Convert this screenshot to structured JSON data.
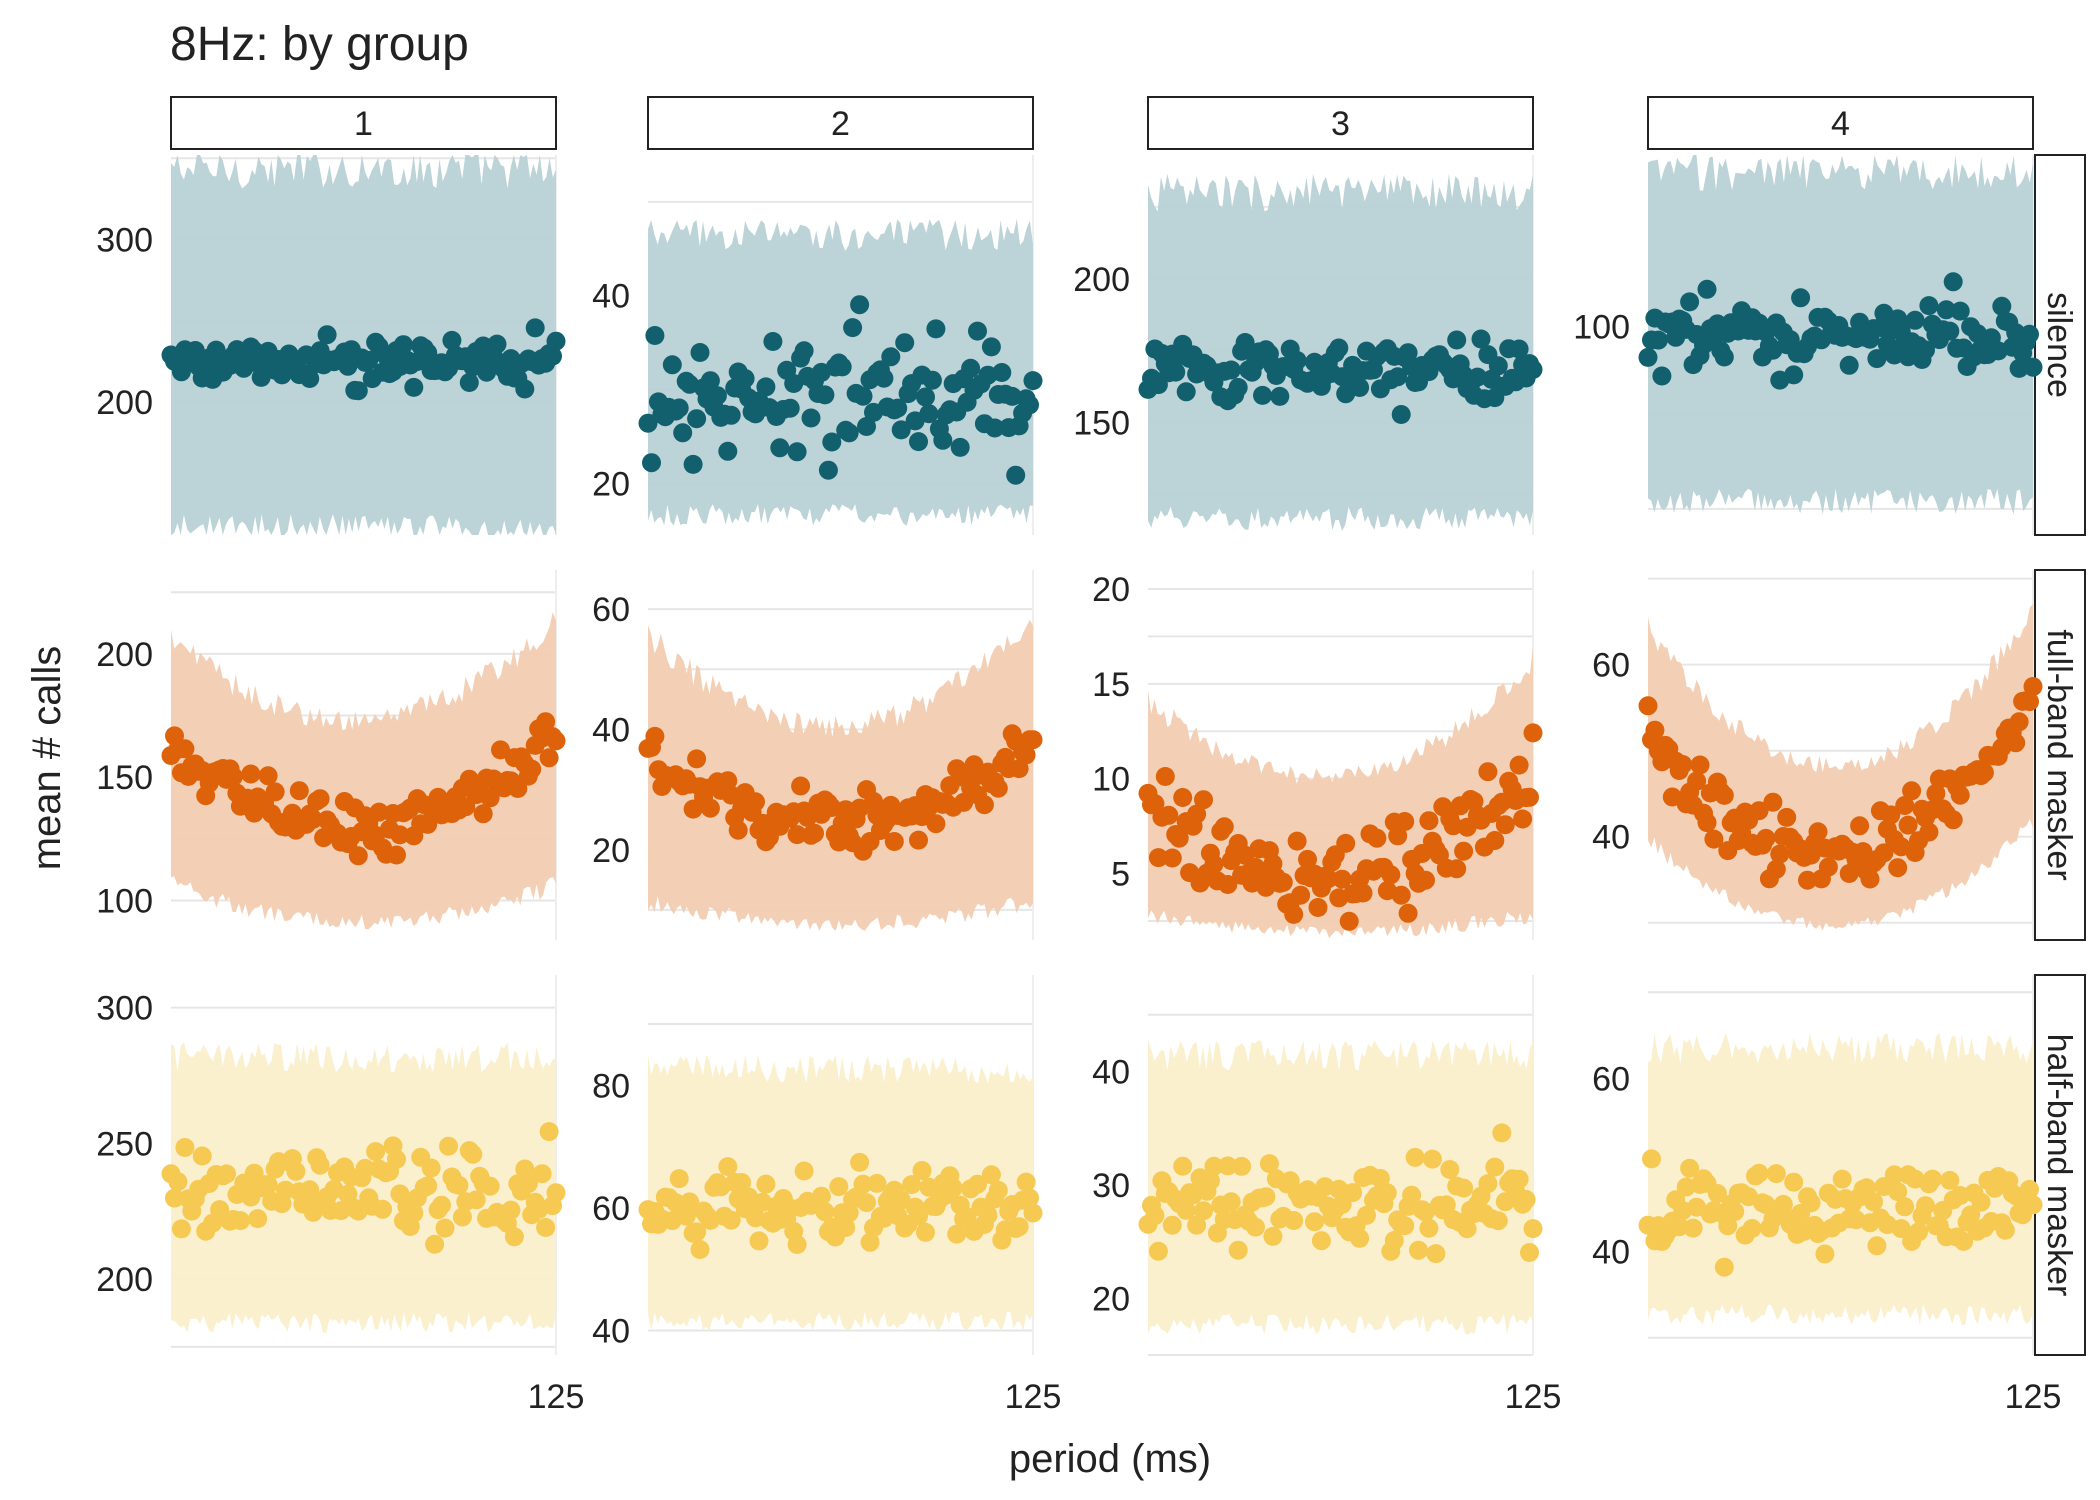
{
  "title": "8Hz: by group",
  "chart_data": {
    "type": "scatter",
    "title": "8Hz: by group",
    "xlabel": "period (ms)",
    "ylabel": "mean # calls",
    "x_tick_labels": [
      "125"
    ],
    "grid": true,
    "legend": "none",
    "columns": [
      "1",
      "2",
      "3",
      "4"
    ],
    "rows": [
      "silence",
      "full-band masker",
      "half-band masker"
    ],
    "colors": {
      "silence": "#12606e",
      "full-band masker": "#dd6209",
      "half-band masker": "#f6c953"
    },
    "ribbon_colors": {
      "silence": "#b8d1d6",
      "full-band masker": "#f2cdb1",
      "half-band masker": "#fbefcb"
    },
    "panels": [
      {
        "column": "1",
        "row": "silence",
        "ylim": [
          118,
          352
        ],
        "yticks": [
          200,
          300
        ],
        "pattern": "flat",
        "mean_start": 225,
        "mean_mid": 225,
        "mean_end": 225,
        "spread": 7,
        "ribbon_low": 125,
        "ribbon_high": 340
      },
      {
        "column": "2",
        "row": "silence",
        "ylim": [
          14.5,
          55
        ],
        "yticks": [
          20,
          40
        ],
        "pattern": "flat",
        "mean_start": 29,
        "mean_mid": 29,
        "mean_end": 29,
        "spread": 3.5,
        "ribbon_low": 17,
        "ribbon_high": 46
      },
      {
        "column": "3",
        "row": "silence",
        "ylim": [
          111,
          243
        ],
        "yticks": [
          150,
          200
        ],
        "pattern": "flat",
        "mean_start": 169,
        "mean_mid": 169,
        "mean_end": 169,
        "spread": 5,
        "ribbon_low": 118,
        "ribbon_high": 228
      },
      {
        "column": "4",
        "row": "silence",
        "ylim": [
          44,
          146
        ],
        "yticks": [
          100
        ],
        "pattern": "flat",
        "mean_start": 98,
        "mean_mid": 98,
        "mean_end": 98,
        "spread": 4.5,
        "ribbon_low": 54,
        "ribbon_high": 140
      },
      {
        "column": "1",
        "row": "full-band masker",
        "ylim": [
          84,
          234
        ],
        "yticks": [
          100,
          150,
          200
        ],
        "pattern": "dip",
        "mean_start": 162,
        "mean_mid": 130,
        "mean_end": 168,
        "spread": 5,
        "ribbon_low_start": 108,
        "ribbon_low_mid": 92,
        "ribbon_low_end": 108,
        "ribbon_high_start": 205,
        "ribbon_high_mid": 172,
        "ribbon_high_end": 212
      },
      {
        "column": "2",
        "row": "full-band masker",
        "ylim": [
          5,
          66.5
        ],
        "yticks": [
          20,
          40,
          60
        ],
        "pattern": "dip",
        "mean_start": 36,
        "mean_mid": 24,
        "mean_end": 38,
        "spread": 2.5,
        "ribbon_low_start": 12,
        "ribbon_low_mid": 8,
        "ribbon_low_end": 12,
        "ribbon_high_start": 55,
        "ribbon_high_mid": 40,
        "ribbon_high_end": 58
      },
      {
        "column": "3",
        "row": "full-band masker",
        "ylim": [
          1.5,
          21
        ],
        "yticks": [
          5,
          10,
          15,
          20
        ],
        "pattern": "dip",
        "mean_start": 8,
        "mean_mid": 5,
        "mean_end": 9.5,
        "spread": 1.2,
        "ribbon_low_start": 3,
        "ribbon_low_mid": 2,
        "ribbon_low_end": 3,
        "ribbon_high_start": 14,
        "ribbon_high_mid": 10,
        "ribbon_high_end": 16
      },
      {
        "column": "4",
        "row": "full-band masker",
        "ylim": [
          28,
          71
        ],
        "yticks": [
          40,
          60
        ],
        "pattern": "dip",
        "mean_start": 53,
        "mean_mid": 38,
        "mean_end": 56,
        "spread": 2,
        "ribbon_low_start": 40,
        "ribbon_low_mid": 30,
        "ribbon_low_end": 42,
        "ribbon_high_start": 64,
        "ribbon_high_mid": 48,
        "ribbon_high_end": 66
      },
      {
        "column": "1",
        "row": "half-band masker",
        "ylim": [
          172,
          312
        ],
        "yticks": [
          200,
          250,
          300
        ],
        "pattern": "flat",
        "mean_start": 233,
        "mean_mid": 233,
        "mean_end": 233,
        "spread": 9,
        "ribbon_low": 185,
        "ribbon_high": 280
      },
      {
        "column": "2",
        "row": "half-band masker",
        "ylim": [
          36,
          98
        ],
        "yticks": [
          40,
          60,
          80
        ],
        "pattern": "flat",
        "mean_start": 60,
        "mean_mid": 60,
        "mean_end": 60,
        "spread": 3.5,
        "ribbon_low": 42,
        "ribbon_high": 82
      },
      {
        "column": "3",
        "row": "half-band masker",
        "ylim": [
          15,
          48.5
        ],
        "yticks": [
          20,
          30,
          40
        ],
        "pattern": "flat",
        "mean_start": 28,
        "mean_mid": 28,
        "mean_end": 28,
        "spread": 2.3,
        "ribbon_low": 18,
        "ribbon_high": 41
      },
      {
        "column": "4",
        "row": "half-band masker",
        "ylim": [
          28,
          72
        ],
        "yticks": [
          40,
          60
        ],
        "pattern": "flat",
        "mean_start": 45,
        "mean_mid": 45,
        "mean_end": 45,
        "spread": 2.5,
        "ribbon_low": 33,
        "ribbon_high": 63
      }
    ]
  }
}
